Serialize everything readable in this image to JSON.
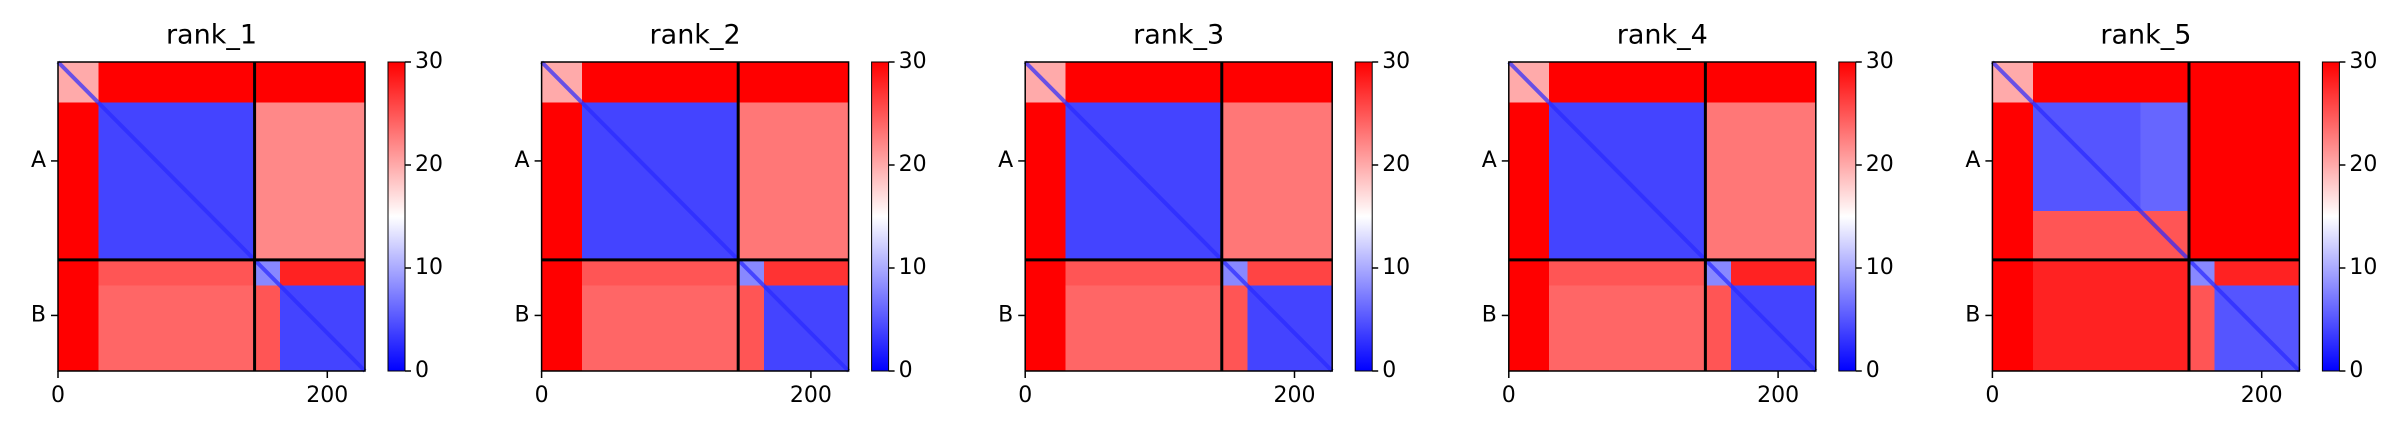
{
  "chart_data": [
    {
      "type": "heatmap",
      "title": "rank_1",
      "x_edges": [
        0,
        30,
        110,
        146,
        165,
        228
      ],
      "z": [
        [
          20,
          30,
          30,
          30,
          30
        ],
        [
          30,
          4,
          4,
          22,
          22
        ],
        [
          30,
          4,
          4,
          22,
          22
        ],
        [
          30,
          25,
          25,
          8,
          28
        ],
        [
          30,
          24,
          24,
          25,
          4
        ]
      ],
      "xlim": [
        0,
        228
      ],
      "ylim": [
        228,
        0
      ],
      "xticks": [
        0,
        200
      ],
      "yticks": [
        {
          "value": 73,
          "label": "A"
        },
        {
          "value": 187,
          "label": "B"
        }
      ],
      "chain_breaks": [
        146
      ],
      "clim": [
        0,
        30
      ],
      "colorbar_ticks": [
        0,
        10,
        20,
        30
      ]
    },
    {
      "type": "heatmap",
      "title": "rank_2",
      "x_edges": [
        0,
        30,
        110,
        146,
        165,
        228
      ],
      "z": [
        [
          20,
          30,
          30,
          30,
          30
        ],
        [
          30,
          4,
          4,
          23,
          23
        ],
        [
          30,
          4,
          4,
          23,
          23
        ],
        [
          30,
          25,
          25,
          8,
          27
        ],
        [
          30,
          24,
          24,
          25,
          4
        ]
      ],
      "xlim": [
        0,
        228
      ],
      "ylim": [
        228,
        0
      ],
      "xticks": [
        0,
        200
      ],
      "yticks": [
        {
          "value": 73,
          "label": "A"
        },
        {
          "value": 187,
          "label": "B"
        }
      ],
      "chain_breaks": [
        146
      ],
      "clim": [
        0,
        30
      ],
      "colorbar_ticks": [
        0,
        10,
        20,
        30
      ]
    },
    {
      "type": "heatmap",
      "title": "rank_3",
      "x_edges": [
        0,
        30,
        110,
        146,
        165,
        228
      ],
      "z": [
        [
          20,
          30,
          30,
          30,
          30
        ],
        [
          30,
          4,
          4,
          23,
          23
        ],
        [
          30,
          4,
          4,
          23,
          23
        ],
        [
          30,
          25,
          25,
          8,
          26
        ],
        [
          30,
          24,
          24,
          25,
          4
        ]
      ],
      "xlim": [
        0,
        228
      ],
      "ylim": [
        228,
        0
      ],
      "xticks": [
        0,
        200
      ],
      "yticks": [
        {
          "value": 73,
          "label": "A"
        },
        {
          "value": 187,
          "label": "B"
        }
      ],
      "chain_breaks": [
        146
      ],
      "clim": [
        0,
        30
      ],
      "colorbar_ticks": [
        0,
        10,
        20,
        30
      ]
    },
    {
      "type": "heatmap",
      "title": "rank_4",
      "x_edges": [
        0,
        30,
        110,
        146,
        165,
        228
      ],
      "z": [
        [
          20,
          30,
          30,
          30,
          30
        ],
        [
          30,
          4,
          4,
          23,
          23
        ],
        [
          30,
          4,
          4,
          23,
          23
        ],
        [
          30,
          25,
          25,
          8,
          28
        ],
        [
          30,
          24,
          24,
          25,
          4
        ]
      ],
      "xlim": [
        0,
        228
      ],
      "ylim": [
        228,
        0
      ],
      "xticks": [
        0,
        200
      ],
      "yticks": [
        {
          "value": 73,
          "label": "A"
        },
        {
          "value": 187,
          "label": "B"
        }
      ],
      "chain_breaks": [
        146
      ],
      "clim": [
        0,
        30
      ],
      "colorbar_ticks": [
        0,
        10,
        20,
        30
      ]
    },
    {
      "type": "heatmap",
      "title": "rank_5",
      "x_edges": [
        0,
        30,
        110,
        146,
        165,
        228
      ],
      "z": [
        [
          20,
          30,
          30,
          30,
          30
        ],
        [
          30,
          5,
          6,
          30,
          30
        ],
        [
          30,
          25,
          25,
          30,
          30
        ],
        [
          30,
          28,
          28,
          8,
          28
        ],
        [
          30,
          28,
          28,
          25,
          5
        ]
      ],
      "xlim": [
        0,
        228
      ],
      "ylim": [
        228,
        0
      ],
      "xticks": [
        0,
        200
      ],
      "yticks": [
        {
          "value": 73,
          "label": "A"
        },
        {
          "value": 187,
          "label": "B"
        }
      ],
      "chain_breaks": [
        146
      ],
      "clim": [
        0,
        30
      ],
      "colorbar_ticks": [
        0,
        10,
        20,
        30
      ]
    }
  ]
}
